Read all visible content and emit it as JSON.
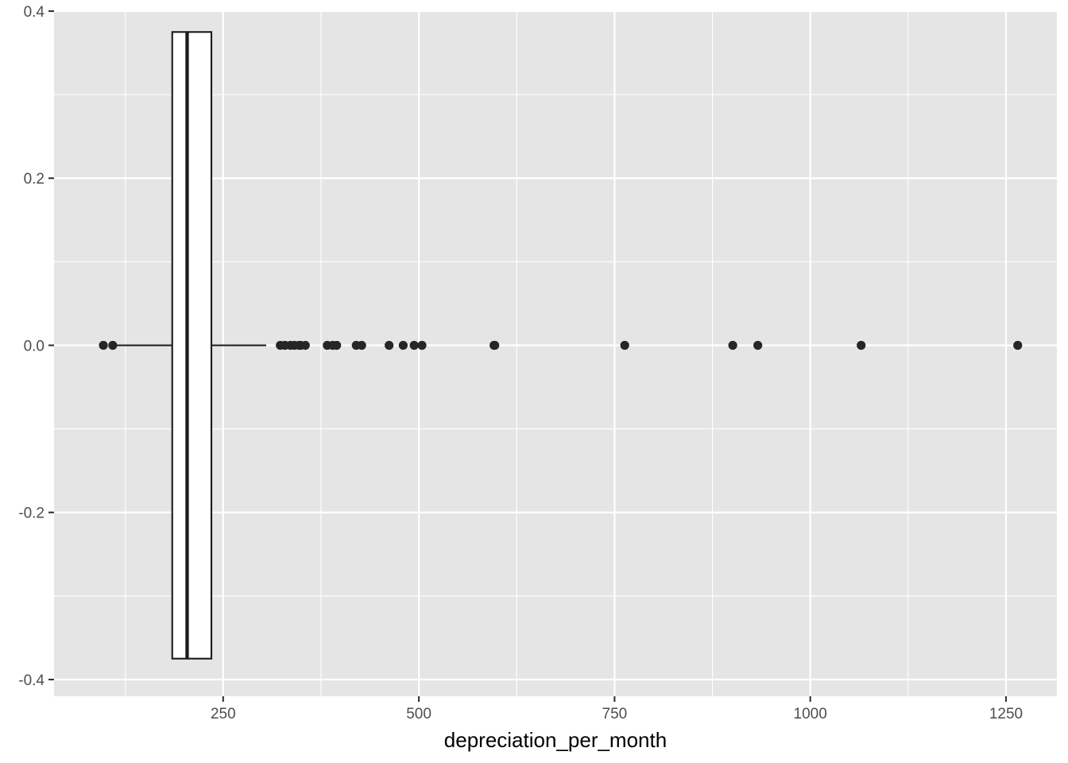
{
  "chart_data": {
    "type": "boxplot",
    "orientation": "horizontal",
    "xlabel": "depreciation_per_month",
    "ylabel": "",
    "xlim": [
      34,
      1315
    ],
    "ylim": [
      -0.42,
      0.4
    ],
    "x_ticks": [
      250,
      500,
      750,
      1000,
      1250
    ],
    "x_tick_labels": [
      "250",
      "500",
      "750",
      "1000",
      "1250"
    ],
    "y_ticks": [
      -0.4,
      -0.2,
      0.0,
      0.2,
      0.4
    ],
    "y_tick_labels": [
      "-0.4",
      "-0.2",
      "0.0",
      "0.2",
      "0.4"
    ],
    "grid": true,
    "legend": "none",
    "box": {
      "y": 0,
      "half_width": 0.375,
      "whisker_low": 110,
      "q1": 185,
      "median": 204,
      "q3": 235,
      "whisker_high": 305
    },
    "outliers": [
      97,
      109,
      323,
      329,
      336,
      341,
      347,
      349,
      355,
      383,
      390,
      395,
      420,
      427,
      462,
      480,
      494,
      504,
      596,
      597,
      763,
      901,
      933,
      1065,
      1265
    ],
    "colors": {
      "panel": "#e5e5e5",
      "grid": "#ffffff",
      "box_fill": "#ffffff",
      "box_stroke": "#1a1a1a",
      "point": "#262626",
      "tick": "#4d4d4d"
    }
  }
}
